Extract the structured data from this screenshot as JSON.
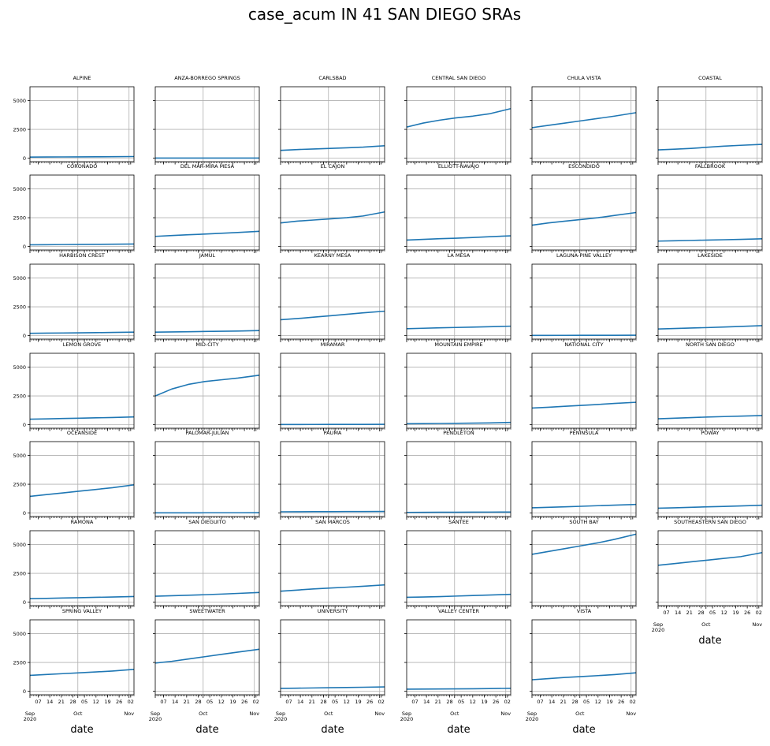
{
  "figure": {
    "title": "case_acum IN 41 SAN DIEGO SRAs",
    "xlabel": "date"
  },
  "chart_data": {
    "type": "line",
    "title": "case_acum IN 41 SAN DIEGO SRAs",
    "xlabel": "date",
    "ylabel": "",
    "series_color": "#1f77b4",
    "grid": true,
    "shared_y": true,
    "ylim": [
      -300,
      6200
    ],
    "yticks": [
      0,
      2500,
      5000
    ],
    "ytick_labels": [
      "0",
      "2500",
      "5000"
    ],
    "xrange": [
      "2020-09-02",
      "2020-11-04"
    ],
    "x_minor_tick_labels": [
      "07",
      "14",
      "21",
      "28",
      "05",
      "12",
      "19",
      "26",
      "02"
    ],
    "x_minor_tick_dates": [
      "2020-09-07",
      "2020-09-14",
      "2020-09-21",
      "2020-09-28",
      "2020-10-05",
      "2020-10-12",
      "2020-10-19",
      "2020-10-26",
      "2020-11-02"
    ],
    "x_major_tick_labels": [
      [
        "Sep",
        "2020"
      ],
      [
        "Oct",
        ""
      ],
      [
        "Nov",
        ""
      ]
    ],
    "x_major_tick_dates": [
      "2020-09-01",
      "2020-10-01",
      "2020-11-01"
    ],
    "x": [
      "2020-09-02",
      "2020-09-12",
      "2020-09-22",
      "2020-10-02",
      "2020-10-12",
      "2020-10-22",
      "2020-11-04"
    ],
    "panels": [
      {
        "name": "ALPINE",
        "values": [
          100,
          105,
          110,
          115,
          120,
          130,
          145
        ]
      },
      {
        "name": "ANZA-BORREGO SPRINGS",
        "values": [
          10,
          11,
          12,
          12,
          13,
          14,
          15
        ]
      },
      {
        "name": "CARLSBAD",
        "values": [
          680,
          750,
          800,
          850,
          900,
          960,
          1080
        ]
      },
      {
        "name": "CENTRAL SAN DIEGO",
        "values": [
          2700,
          3050,
          3300,
          3500,
          3650,
          3850,
          4300
        ]
      },
      {
        "name": "CHULA VISTA",
        "values": [
          2650,
          2850,
          3050,
          3250,
          3450,
          3650,
          3950
        ]
      },
      {
        "name": "COASTAL",
        "values": [
          720,
          780,
          850,
          950,
          1050,
          1120,
          1200
        ]
      },
      {
        "name": "CORONADO",
        "values": [
          150,
          160,
          170,
          180,
          190,
          200,
          220
        ]
      },
      {
        "name": "DEL MAR-MIRA MESA",
        "values": [
          880,
          950,
          1020,
          1080,
          1150,
          1220,
          1320
        ]
      },
      {
        "name": "EL CAJON",
        "values": [
          2050,
          2200,
          2300,
          2400,
          2500,
          2650,
          3000
        ]
      },
      {
        "name": "ELLIOTT-NAVAJO",
        "values": [
          560,
          620,
          680,
          720,
          780,
          850,
          930
        ]
      },
      {
        "name": "ESCONDIDO",
        "values": [
          1850,
          2050,
          2200,
          2350,
          2500,
          2700,
          2950
        ]
      },
      {
        "name": "FALLBROOK",
        "values": [
          470,
          500,
          530,
          560,
          590,
          620,
          670
        ]
      },
      {
        "name": "HARBISON CREST",
        "values": [
          200,
          215,
          230,
          245,
          260,
          275,
          300
        ]
      },
      {
        "name": "JAMUL",
        "values": [
          300,
          320,
          340,
          360,
          380,
          400,
          440
        ]
      },
      {
        "name": "KEARNY MESA",
        "values": [
          1380,
          1480,
          1600,
          1720,
          1850,
          1980,
          2120
        ]
      },
      {
        "name": "LA MESA",
        "values": [
          600,
          640,
          680,
          710,
          740,
          770,
          820
        ]
      },
      {
        "name": "LAGUNA-PINE VALLEY",
        "values": [
          20,
          22,
          25,
          27,
          30,
          32,
          35
        ]
      },
      {
        "name": "LAKESIDE",
        "values": [
          580,
          620,
          660,
          700,
          750,
          800,
          870
        ]
      },
      {
        "name": "LEMON GROVE",
        "values": [
          480,
          510,
          540,
          570,
          600,
          630,
          680
        ]
      },
      {
        "name": "MID-CITY",
        "values": [
          2500,
          3100,
          3500,
          3750,
          3900,
          4050,
          4300
        ]
      },
      {
        "name": "MIRAMAR",
        "values": [
          20,
          22,
          25,
          27,
          30,
          32,
          35
        ]
      },
      {
        "name": "MOUNTAIN EMPIRE",
        "values": [
          90,
          100,
          110,
          120,
          140,
          160,
          200
        ]
      },
      {
        "name": "NATIONAL CITY",
        "values": [
          1450,
          1520,
          1600,
          1680,
          1760,
          1850,
          1950
        ]
      },
      {
        "name": "NORTH SAN DIEGO",
        "values": [
          520,
          570,
          620,
          670,
          710,
          750,
          800
        ]
      },
      {
        "name": "OCEANSIDE",
        "values": [
          1450,
          1600,
          1750,
          1900,
          2050,
          2200,
          2450
        ]
      },
      {
        "name": "PALOMAR-JULIAN",
        "values": [
          20,
          22,
          23,
          24,
          25,
          26,
          28
        ]
      },
      {
        "name": "PAUMA",
        "values": [
          110,
          115,
          120,
          125,
          130,
          135,
          140
        ]
      },
      {
        "name": "PENDLETON",
        "values": [
          60,
          65,
          70,
          75,
          80,
          85,
          90
        ]
      },
      {
        "name": "PENINSULA",
        "values": [
          460,
          500,
          540,
          590,
          640,
          690,
          750
        ]
      },
      {
        "name": "POWAY",
        "values": [
          420,
          460,
          500,
          540,
          580,
          620,
          680
        ]
      },
      {
        "name": "RAMONA",
        "values": [
          300,
          330,
          360,
          390,
          420,
          450,
          490
        ]
      },
      {
        "name": "SAN DIEGUITO",
        "values": [
          520,
          560,
          600,
          650,
          700,
          760,
          840
        ]
      },
      {
        "name": "SAN MARCOS",
        "values": [
          950,
          1050,
          1150,
          1230,
          1300,
          1380,
          1500
        ]
      },
      {
        "name": "SANTEE",
        "values": [
          420,
          450,
          480,
          530,
          580,
          620,
          680
        ]
      },
      {
        "name": "SOUTH BAY",
        "values": [
          4150,
          4400,
          4650,
          4900,
          5150,
          5450,
          5900
        ]
      },
      {
        "name": "SOUTHEASTERN SAN DIEGO",
        "values": [
          3200,
          3350,
          3500,
          3650,
          3800,
          3950,
          4300
        ]
      },
      {
        "name": "SPRING VALLEY",
        "values": [
          1380,
          1460,
          1530,
          1600,
          1680,
          1760,
          1900
        ]
      },
      {
        "name": "SWEETWATER",
        "values": [
          2450,
          2600,
          2800,
          3000,
          3200,
          3400,
          3650
        ]
      },
      {
        "name": "UNIVERSITY",
        "values": [
          250,
          270,
          290,
          310,
          330,
          350,
          380
        ]
      },
      {
        "name": "VALLEY CENTER",
        "values": [
          180,
          190,
          200,
          210,
          220,
          235,
          260
        ]
      },
      {
        "name": "VISTA",
        "values": [
          1000,
          1100,
          1200,
          1280,
          1360,
          1450,
          1600
        ]
      }
    ]
  }
}
